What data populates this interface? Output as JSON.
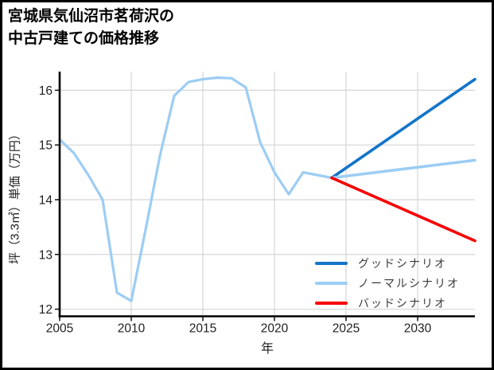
{
  "title": {
    "text": "宮城県気仙沼市茗荷沢の\n中古戸建ての価格推移"
  },
  "chart_data": {
    "type": "line",
    "title": "宮城県気仙沼市茗荷沢の中古戸建ての価格推移",
    "xlabel": "年",
    "ylabel": "坪（3.3㎡）単価（万円）",
    "xlim": [
      2005,
      2034
    ],
    "ylim": [
      11.87,
      16.34
    ],
    "xticks": [
      2005,
      2010,
      2015,
      2020,
      2025,
      2030
    ],
    "yticks": [
      12,
      13,
      14,
      15,
      16
    ],
    "grid": true,
    "grid_color": "#d6d6d6",
    "axis_color": "#000000",
    "tick_label_color": "#1f1f1f",
    "legend_position": "lower right",
    "series": [
      {
        "name": "history",
        "color": "#9CCDF4",
        "width": 3.2,
        "x": [
          2005,
          2006,
          2007,
          2008,
          2009,
          2010,
          2011,
          2012,
          2013,
          2014,
          2015,
          2016,
          2017,
          2018,
          2019,
          2020,
          2021,
          2022,
          2023,
          2024
        ],
        "y": [
          15.1,
          14.85,
          14.45,
          14.0,
          12.3,
          12.15,
          13.45,
          14.8,
          15.9,
          16.15,
          16.2,
          16.23,
          16.22,
          16.05,
          15.05,
          14.5,
          14.1,
          14.5,
          14.45,
          14.4
        ],
        "in_legend": false
      },
      {
        "name": "グッドシナリオ",
        "color": "#1274C9",
        "width": 3.6,
        "x": [
          2024,
          2034
        ],
        "y": [
          14.4,
          16.2
        ],
        "in_legend": true
      },
      {
        "name": "ノーマルシナリオ",
        "color": "#9CCDF4",
        "width": 3.6,
        "x": [
          2024,
          2034
        ],
        "y": [
          14.4,
          14.72
        ],
        "in_legend": true
      },
      {
        "name": "バッドシナリオ",
        "color": "#F70000",
        "width": 3.6,
        "x": [
          2024,
          2034
        ],
        "y": [
          14.4,
          13.25
        ],
        "in_legend": true
      }
    ]
  }
}
